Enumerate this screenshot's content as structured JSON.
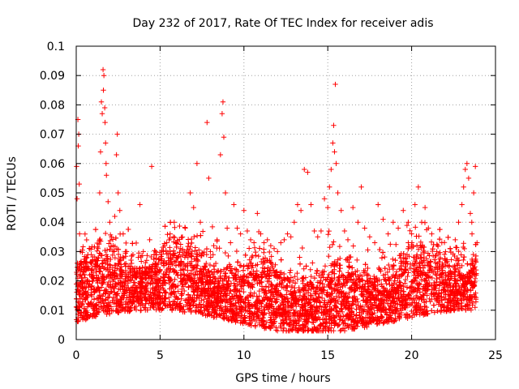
{
  "chart_data": {
    "type": "scatter",
    "title": "Day 232 of 2017, Rate Of TEC Index for receiver adis",
    "xlabel": "GPS time / hours",
    "ylabel": "ROTI / TECUs",
    "xlim": [
      0,
      25
    ],
    "ylim": [
      0,
      0.1
    ],
    "xticks": [
      0,
      5,
      10,
      15,
      20,
      25
    ],
    "yticks": [
      0,
      0.01,
      0.02,
      0.03,
      0.04,
      0.05,
      0.06,
      0.07,
      0.08,
      0.09,
      0.1
    ],
    "xtick_labels": [
      "0",
      "5",
      "10",
      "15",
      "20",
      "25"
    ],
    "ytick_labels": [
      "0",
      "0.01",
      "0.02",
      "0.03",
      "0.04",
      "0.05",
      "0.06",
      "0.07",
      "0.08",
      "0.09",
      "0.1"
    ],
    "grid": true,
    "grid_style": "dotted",
    "marker": "plus",
    "color": "#ff0000",
    "series": [
      {
        "values": [
          [
            0.02,
            0.059
          ],
          [
            0.05,
            0.048
          ],
          [
            0.1,
            0.075
          ],
          [
            0.12,
            0.066
          ],
          [
            0.15,
            0.07
          ],
          [
            0.18,
            0.053
          ],
          [
            0.2,
            0.036
          ],
          [
            0.25,
            0.03
          ],
          [
            0.3,
            0.026
          ],
          [
            0.35,
            0.022
          ],
          [
            0.4,
            0.02
          ],
          [
            0.5,
            0.024
          ],
          [
            0.6,
            0.018
          ],
          [
            0.7,
            0.016
          ],
          [
            0.8,
            0.022
          ],
          [
            0.9,
            0.026
          ],
          [
            1.0,
            0.02
          ],
          [
            1.1,
            0.017
          ],
          [
            1.2,
            0.024
          ],
          [
            1.3,
            0.031
          ],
          [
            1.4,
            0.05
          ],
          [
            1.45,
            0.064
          ],
          [
            1.5,
            0.081
          ],
          [
            1.55,
            0.077
          ],
          [
            1.6,
            0.092
          ],
          [
            1.62,
            0.085
          ],
          [
            1.65,
            0.09
          ],
          [
            1.7,
            0.079
          ],
          [
            1.72,
            0.074
          ],
          [
            1.75,
            0.067
          ],
          [
            1.78,
            0.06
          ],
          [
            1.8,
            0.056
          ],
          [
            1.9,
            0.047
          ],
          [
            2.0,
            0.04
          ],
          [
            2.1,
            0.035
          ],
          [
            2.2,
            0.032
          ],
          [
            2.3,
            0.042
          ],
          [
            2.4,
            0.063
          ],
          [
            2.45,
            0.07
          ],
          [
            2.5,
            0.05
          ],
          [
            2.6,
            0.044
          ],
          [
            2.8,
            0.036
          ],
          [
            3.0,
            0.03
          ],
          [
            3.2,
            0.025
          ],
          [
            3.5,
            0.022
          ],
          [
            3.7,
            0.028
          ],
          [
            3.8,
            0.046
          ],
          [
            4.0,
            0.03
          ],
          [
            4.2,
            0.027
          ],
          [
            4.5,
            0.025
          ],
          [
            4.5,
            0.059
          ],
          [
            4.8,
            0.022
          ],
          [
            5.0,
            0.02
          ],
          [
            5.2,
            0.03
          ],
          [
            5.4,
            0.033
          ],
          [
            5.6,
            0.036
          ],
          [
            5.8,
            0.035
          ],
          [
            6.0,
            0.028
          ],
          [
            6.2,
            0.031
          ],
          [
            6.5,
            0.038
          ],
          [
            6.8,
            0.05
          ],
          [
            7.0,
            0.045
          ],
          [
            7.2,
            0.06
          ],
          [
            7.4,
            0.04
          ],
          [
            7.6,
            0.029
          ],
          [
            7.8,
            0.074
          ],
          [
            7.9,
            0.055
          ],
          [
            8.0,
            0.03
          ],
          [
            8.2,
            0.032
          ],
          [
            8.4,
            0.034
          ],
          [
            8.6,
            0.063
          ],
          [
            8.7,
            0.077
          ],
          [
            8.75,
            0.081
          ],
          [
            8.8,
            0.069
          ],
          [
            8.9,
            0.05
          ],
          [
            9.0,
            0.038
          ],
          [
            9.2,
            0.033
          ],
          [
            9.4,
            0.046
          ],
          [
            9.6,
            0.038
          ],
          [
            9.8,
            0.036
          ],
          [
            10.0,
            0.044
          ],
          [
            10.2,
            0.037
          ],
          [
            10.4,
            0.034
          ],
          [
            10.6,
            0.033
          ],
          [
            10.8,
            0.043
          ],
          [
            11.0,
            0.036
          ],
          [
            11.2,
            0.033
          ],
          [
            11.4,
            0.034
          ],
          [
            11.6,
            0.032
          ],
          [
            11.8,
            0.031
          ],
          [
            12.0,
            0.03
          ],
          [
            12.2,
            0.033
          ],
          [
            12.4,
            0.034
          ],
          [
            12.6,
            0.036
          ],
          [
            12.8,
            0.035
          ],
          [
            13.0,
            0.04
          ],
          [
            13.2,
            0.046
          ],
          [
            13.4,
            0.044
          ],
          [
            13.6,
            0.058
          ],
          [
            13.8,
            0.057
          ],
          [
            14.0,
            0.046
          ],
          [
            14.2,
            0.037
          ],
          [
            14.4,
            0.035
          ],
          [
            14.6,
            0.037
          ],
          [
            14.8,
            0.048
          ],
          [
            15.0,
            0.045
          ],
          [
            15.1,
            0.052
          ],
          [
            15.2,
            0.058
          ],
          [
            15.3,
            0.067
          ],
          [
            15.35,
            0.073
          ],
          [
            15.4,
            0.064
          ],
          [
            15.45,
            0.087
          ],
          [
            15.5,
            0.06
          ],
          [
            15.6,
            0.05
          ],
          [
            15.8,
            0.044
          ],
          [
            16.0,
            0.037
          ],
          [
            16.2,
            0.034
          ],
          [
            16.5,
            0.045
          ],
          [
            16.8,
            0.04
          ],
          [
            17.0,
            0.052
          ],
          [
            17.2,
            0.038
          ],
          [
            17.5,
            0.035
          ],
          [
            17.8,
            0.033
          ],
          [
            18.0,
            0.046
          ],
          [
            18.3,
            0.041
          ],
          [
            18.6,
            0.036
          ],
          [
            18.9,
            0.04
          ],
          [
            19.2,
            0.038
          ],
          [
            19.5,
            0.044
          ],
          [
            19.8,
            0.033
          ],
          [
            20.0,
            0.036
          ],
          [
            20.2,
            0.046
          ],
          [
            20.4,
            0.052
          ],
          [
            20.6,
            0.04
          ],
          [
            20.8,
            0.045
          ],
          [
            21.0,
            0.038
          ],
          [
            21.2,
            0.036
          ],
          [
            21.5,
            0.03
          ],
          [
            21.8,
            0.033
          ],
          [
            22.0,
            0.027
          ],
          [
            22.3,
            0.031
          ],
          [
            22.6,
            0.034
          ],
          [
            22.8,
            0.04
          ],
          [
            23.0,
            0.046
          ],
          [
            23.1,
            0.052
          ],
          [
            23.2,
            0.058
          ],
          [
            23.3,
            0.06
          ],
          [
            23.4,
            0.055
          ],
          [
            23.5,
            0.043
          ],
          [
            23.6,
            0.036
          ],
          [
            23.7,
            0.05
          ],
          [
            23.8,
            0.059
          ],
          [
            23.9,
            0.033
          ]
        ]
      }
    ]
  }
}
